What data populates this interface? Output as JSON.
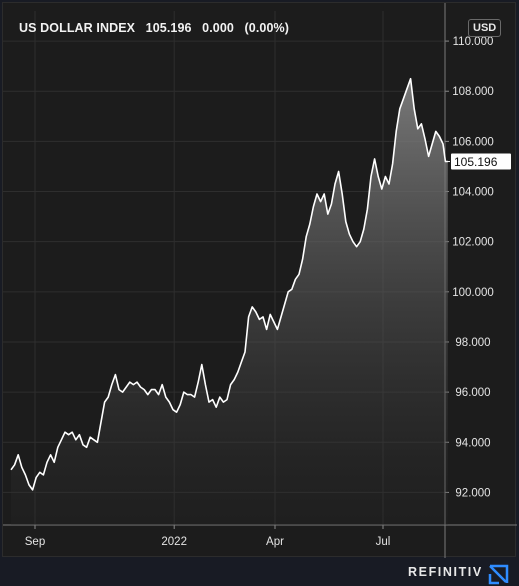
{
  "header": {
    "index_name": "US DOLLAR INDEX",
    "last_value": "105.196",
    "change": "0.000",
    "change_pct": "(0.00%)"
  },
  "currency": "USD",
  "current_price_label": "105.196",
  "brand": "REFINITIV",
  "colors": {
    "background": "#1c1c1c",
    "line": "#ffffff",
    "grid": "#2e2e2e",
    "brand_accent": "#2f8cff"
  },
  "chart_data": {
    "type": "area",
    "title": "US DOLLAR INDEX",
    "xlabel": "",
    "ylabel": "",
    "ylim": [
      90.7,
      111.2
    ],
    "y_ticks": [
      92,
      94,
      96,
      98,
      100,
      102,
      104,
      106,
      108,
      110
    ],
    "y_tick_labels": [
      "92.000",
      "94.000",
      "96.000",
      "98.000",
      "100.000",
      "102.000",
      "104.000",
      "106.000",
      "108.000",
      "110.000"
    ],
    "x_ticks": [
      {
        "label": "Sep",
        "t": 20
      },
      {
        "label": "2022",
        "t": 136
      },
      {
        "label": "Apr",
        "t": 220
      },
      {
        "label": "Jul",
        "t": 310
      }
    ],
    "x_range": [
      0,
      350
    ],
    "grid": true,
    "series": [
      {
        "values": [
          [
            0,
            92.9
          ],
          [
            3,
            93.1
          ],
          [
            6,
            93.5
          ],
          [
            9,
            93.0
          ],
          [
            12,
            92.7
          ],
          [
            15,
            92.3
          ],
          [
            18,
            92.1
          ],
          [
            21,
            92.6
          ],
          [
            24,
            92.8
          ],
          [
            27,
            92.7
          ],
          [
            30,
            93.2
          ],
          [
            33,
            93.5
          ],
          [
            36,
            93.2
          ],
          [
            39,
            93.8
          ],
          [
            42,
            94.1
          ],
          [
            45,
            94.4
          ],
          [
            48,
            94.3
          ],
          [
            51,
            94.4
          ],
          [
            54,
            94.1
          ],
          [
            57,
            94.3
          ],
          [
            60,
            93.9
          ],
          [
            63,
            93.8
          ],
          [
            66,
            94.2
          ],
          [
            69,
            94.1
          ],
          [
            72,
            94.0
          ],
          [
            75,
            94.8
          ],
          [
            78,
            95.6
          ],
          [
            81,
            95.8
          ],
          [
            84,
            96.3
          ],
          [
            87,
            96.7
          ],
          [
            90,
            96.1
          ],
          [
            93,
            96.0
          ],
          [
            96,
            96.2
          ],
          [
            99,
            96.4
          ],
          [
            102,
            96.3
          ],
          [
            105,
            96.4
          ],
          [
            108,
            96.2
          ],
          [
            111,
            96.1
          ],
          [
            114,
            95.9
          ],
          [
            117,
            96.1
          ],
          [
            120,
            96.1
          ],
          [
            123,
            95.9
          ],
          [
            126,
            96.3
          ],
          [
            129,
            95.8
          ],
          [
            132,
            95.6
          ],
          [
            135,
            95.3
          ],
          [
            138,
            95.2
          ],
          [
            141,
            95.5
          ],
          [
            144,
            96.0
          ],
          [
            147,
            95.9
          ],
          [
            150,
            95.9
          ],
          [
            153,
            95.8
          ],
          [
            156,
            96.4
          ],
          [
            159,
            97.1
          ],
          [
            162,
            96.3
          ],
          [
            165,
            95.6
          ],
          [
            168,
            95.7
          ],
          [
            171,
            95.4
          ],
          [
            174,
            95.8
          ],
          [
            177,
            95.6
          ],
          [
            180,
            95.7
          ],
          [
            183,
            96.3
          ],
          [
            186,
            96.5
          ],
          [
            189,
            96.8
          ],
          [
            192,
            97.2
          ],
          [
            195,
            97.6
          ],
          [
            198,
            99.0
          ],
          [
            201,
            99.4
          ],
          [
            204,
            99.2
          ],
          [
            207,
            98.9
          ],
          [
            210,
            99.0
          ],
          [
            213,
            98.5
          ],
          [
            216,
            99.1
          ],
          [
            219,
            98.8
          ],
          [
            222,
            98.5
          ],
          [
            225,
            99.0
          ],
          [
            228,
            99.5
          ],
          [
            231,
            100.0
          ],
          [
            234,
            100.1
          ],
          [
            237,
            100.5
          ],
          [
            240,
            100.7
          ],
          [
            243,
            101.3
          ],
          [
            246,
            102.2
          ],
          [
            249,
            102.7
          ],
          [
            252,
            103.4
          ],
          [
            255,
            103.9
          ],
          [
            258,
            103.6
          ],
          [
            261,
            103.9
          ],
          [
            264,
            103.1
          ],
          [
            267,
            103.5
          ],
          [
            270,
            104.3
          ],
          [
            273,
            104.8
          ],
          [
            276,
            103.9
          ],
          [
            279,
            102.8
          ],
          [
            282,
            102.3
          ],
          [
            285,
            102.0
          ],
          [
            288,
            101.8
          ],
          [
            291,
            102.0
          ],
          [
            294,
            102.5
          ],
          [
            297,
            103.3
          ],
          [
            300,
            104.6
          ],
          [
            303,
            105.3
          ],
          [
            306,
            104.6
          ],
          [
            309,
            104.1
          ],
          [
            312,
            104.6
          ],
          [
            315,
            104.3
          ],
          [
            318,
            105.1
          ],
          [
            321,
            106.4
          ],
          [
            324,
            107.3
          ],
          [
            327,
            107.7
          ],
          [
            330,
            108.1
          ],
          [
            333,
            108.5
          ],
          [
            336,
            107.3
          ],
          [
            339,
            106.5
          ],
          [
            342,
            106.7
          ],
          [
            345,
            106.1
          ],
          [
            348,
            105.4
          ],
          [
            351,
            105.9
          ],
          [
            354,
            106.4
          ],
          [
            357,
            106.2
          ],
          [
            360,
            105.9
          ],
          [
            362,
            105.2
          ],
          [
            364,
            105.196
          ]
        ]
      }
    ]
  }
}
